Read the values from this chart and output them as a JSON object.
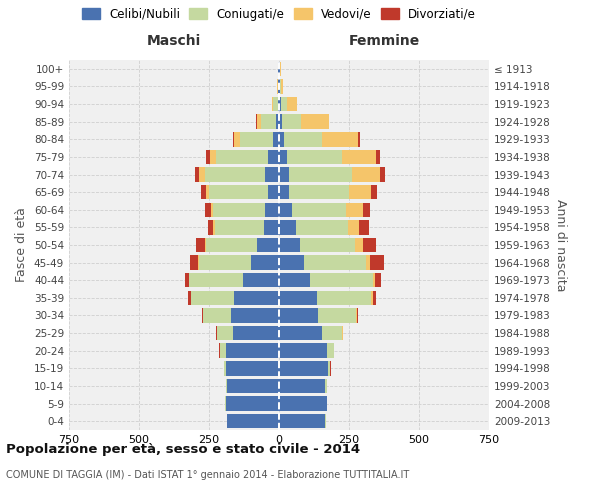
{
  "age_groups_bottom_to_top": [
    "0-4",
    "5-9",
    "10-14",
    "15-19",
    "20-24",
    "25-29",
    "30-34",
    "35-39",
    "40-44",
    "45-49",
    "50-54",
    "55-59",
    "60-64",
    "65-69",
    "70-74",
    "75-79",
    "80-84",
    "85-89",
    "90-94",
    "95-99",
    "100+"
  ],
  "birth_years_bottom_to_top": [
    "2009-2013",
    "2004-2008",
    "1999-2003",
    "1994-1998",
    "1989-1993",
    "1984-1988",
    "1979-1983",
    "1974-1978",
    "1969-1973",
    "1964-1968",
    "1959-1963",
    "1954-1958",
    "1949-1953",
    "1944-1948",
    "1939-1943",
    "1934-1938",
    "1929-1933",
    "1924-1928",
    "1919-1923",
    "1914-1918",
    "≤ 1913"
  ],
  "maschi": {
    "celibi": [
      185,
      190,
      185,
      190,
      190,
      165,
      170,
      160,
      130,
      100,
      80,
      55,
      50,
      40,
      50,
      40,
      20,
      10,
      5,
      2,
      2
    ],
    "coniugati": [
      2,
      2,
      4,
      5,
      20,
      55,
      100,
      155,
      190,
      185,
      180,
      175,
      185,
      210,
      215,
      185,
      120,
      55,
      15,
      3,
      2
    ],
    "vedovi": [
      0,
      0,
      0,
      0,
      1,
      1,
      1,
      1,
      2,
      3,
      5,
      5,
      8,
      10,
      20,
      20,
      20,
      15,
      5,
      1,
      0
    ],
    "divorziati": [
      0,
      0,
      1,
      1,
      2,
      3,
      5,
      10,
      15,
      30,
      30,
      20,
      20,
      20,
      15,
      15,
      5,
      2,
      1,
      0,
      0
    ]
  },
  "femmine": {
    "nubili": [
      165,
      170,
      165,
      175,
      170,
      155,
      140,
      135,
      110,
      90,
      75,
      60,
      45,
      35,
      35,
      30,
      18,
      12,
      8,
      3,
      2
    ],
    "coniugate": [
      2,
      3,
      5,
      8,
      25,
      70,
      135,
      195,
      225,
      220,
      195,
      185,
      195,
      215,
      225,
      195,
      135,
      65,
      20,
      5,
      2
    ],
    "vedove": [
      0,
      0,
      0,
      0,
      1,
      2,
      3,
      5,
      8,
      15,
      30,
      40,
      60,
      80,
      100,
      120,
      130,
      100,
      35,
      8,
      3
    ],
    "divorziate": [
      0,
      0,
      0,
      1,
      2,
      3,
      5,
      10,
      20,
      50,
      45,
      35,
      25,
      20,
      20,
      15,
      5,
      2,
      1,
      0,
      0
    ]
  },
  "colors": {
    "celibi": "#4a72b0",
    "coniugati": "#c5d9a0",
    "vedovi": "#f5c56a",
    "divorziati": "#c0392b"
  },
  "xlim": 750,
  "title": "Popolazione per età, sesso e stato civile - 2014",
  "subtitle": "COMUNE DI TAGGIA (IM) - Dati ISTAT 1° gennaio 2014 - Elaborazione TUTTITALIA.IT",
  "legend_labels": [
    "Celibi/Nubili",
    "Coniugati/e",
    "Vedovi/e",
    "Divorziati/e"
  ],
  "header_left": "Maschi",
  "header_right": "Femmine",
  "ylabel_left": "Fasce di età",
  "ylabel_right": "Anni di nascita",
  "bg_color": "#ffffff",
  "plot_bg_color": "#f0f0f0",
  "grid_color": "#cccccc"
}
